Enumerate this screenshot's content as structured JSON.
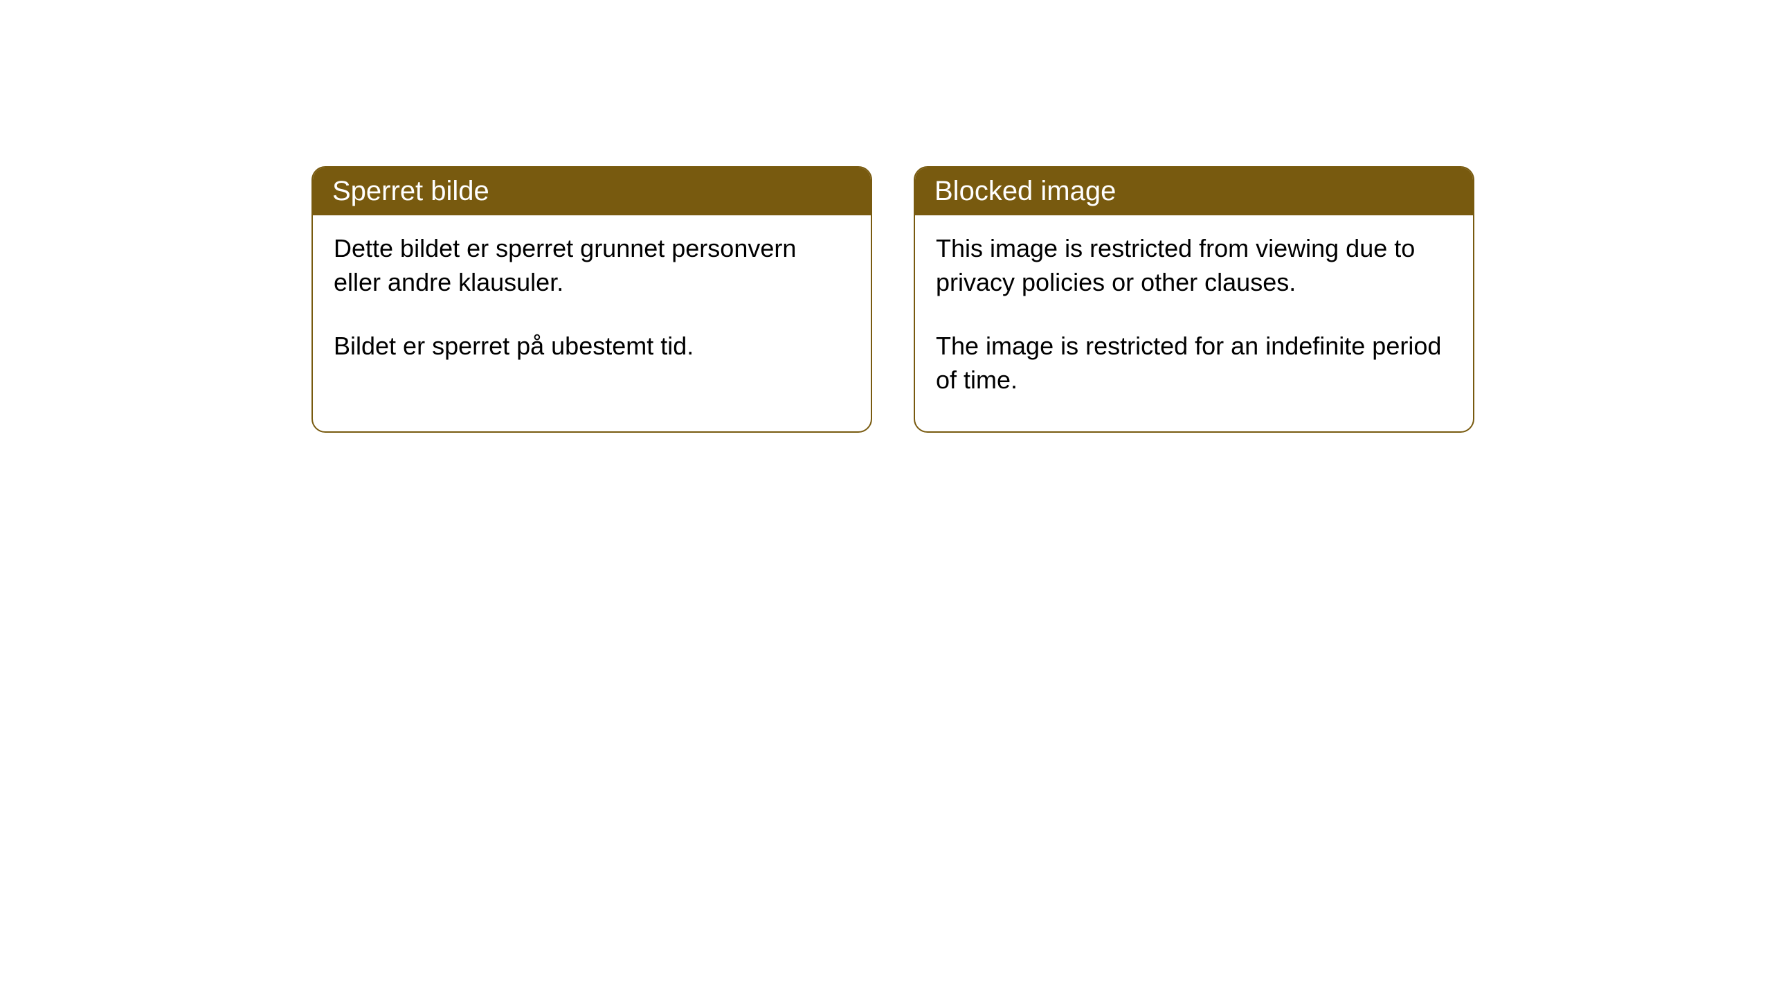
{
  "styling": {
    "header_bg_color": "#785a0f",
    "header_text_color": "#ffffff",
    "border_color": "#785a0f",
    "body_text_color": "#000000",
    "background_color": "#ffffff",
    "header_fontsize": 40,
    "body_fontsize": 36,
    "border_radius": 20,
    "border_width": 2
  },
  "cards": {
    "norwegian": {
      "title": "Sperret bilde",
      "para1": "Dette bildet er sperret grunnet personvern eller andre klausuler.",
      "para2": "Bildet er sperret på ubestemt tid."
    },
    "english": {
      "title": "Blocked image",
      "para1": "This image is restricted from viewing due to privacy policies or other clauses.",
      "para2": "The image is restricted for an indefinite period of time."
    }
  }
}
